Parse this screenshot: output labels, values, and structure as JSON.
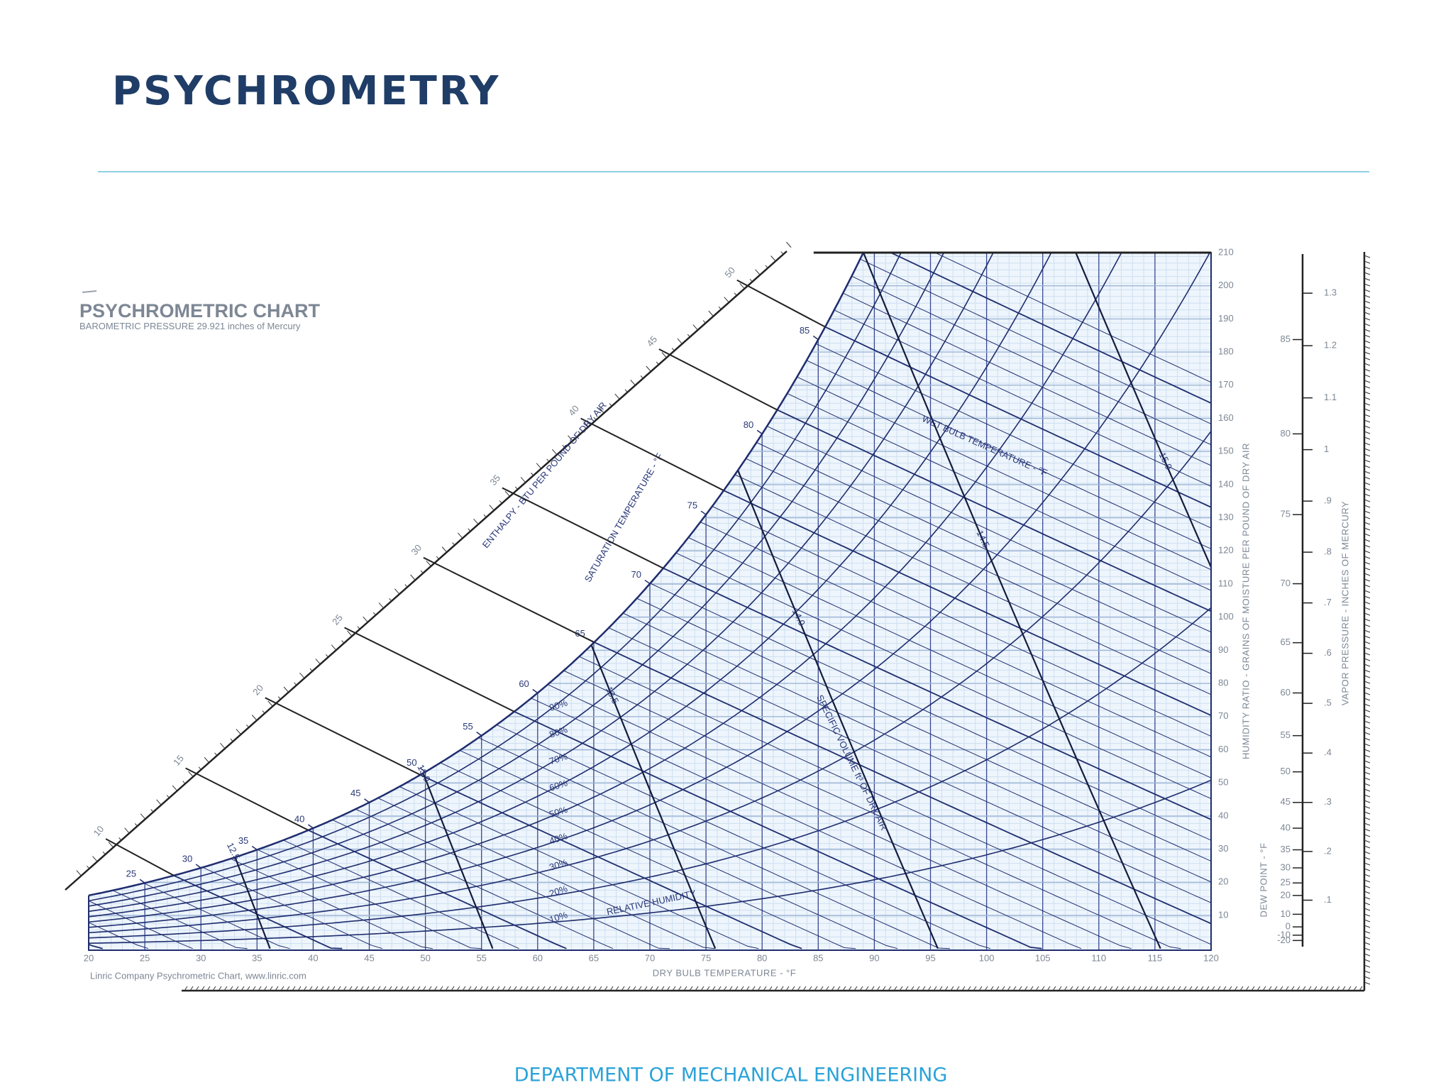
{
  "slide": {
    "title": "PSYCHROMETRY",
    "footer": "DEPARTMENT OF MECHANICAL ENGINEERING"
  },
  "figure": {
    "title": "PSYCHROMETRIC CHART",
    "pressure_label": "BAROMETRIC PRESSURE",
    "pressure": 29.921,
    "pressure_unit": "inches of Mercury",
    "credit": "Linric Company Psychrometric Chart, www.linric.com",
    "x_axis_label": "DRY BULB TEMPERATURE - °F",
    "x_ticks": [
      20,
      25,
      30,
      35,
      40,
      45,
      50,
      55,
      60,
      65,
      70,
      75,
      80,
      85,
      90,
      95,
      100,
      105,
      110,
      115,
      120
    ],
    "y_axis_label": "HUMIDITY RATIO - GRAINS OF MOISTURE PER POUND OF DRY AIR",
    "y_ticks": [
      10,
      20,
      30,
      40,
      50,
      60,
      70,
      80,
      90,
      100,
      110,
      120,
      130,
      140,
      150,
      160,
      170,
      180,
      190,
      200,
      210
    ],
    "saturation_label": "SATURATION TEMPERATURE - °F",
    "saturation_ticks": [
      25,
      30,
      35,
      40,
      45,
      50,
      55,
      60,
      65,
      70,
      75,
      80,
      85
    ],
    "rh_label": "RELATIVE HUMIDITY",
    "rh_ticks": [
      {
        "value": 10,
        "label": "10%"
      },
      {
        "value": 20,
        "label": "20%"
      },
      {
        "value": 30,
        "label": "30%"
      },
      {
        "value": 40,
        "label": "40%"
      },
      {
        "value": 50,
        "label": "50%"
      },
      {
        "value": 60,
        "label": "60%"
      },
      {
        "value": 70,
        "label": "70%"
      },
      {
        "value": 80,
        "label": "80%"
      },
      {
        "value": 90,
        "label": "90%"
      }
    ],
    "wet_bulb_label": "WET BULB TEMPERATURE - °F",
    "volume_label": "SPECIFIC VOLUME ft³ OF DRY AIR",
    "volume_ticks": [
      {
        "value": 12.5,
        "label": "12.5"
      },
      {
        "value": 13,
        "label": "13.0"
      },
      {
        "value": 13.5,
        "label": "13.5"
      },
      {
        "value": 14,
        "label": "14.0"
      },
      {
        "value": 14.5,
        "label": "14.5"
      },
      {
        "value": 15,
        "label": "15.0"
      }
    ],
    "enthalpy_label": "ENTHALPY - BTU PER POUND OF DRY AIR",
    "enthalpy_ticks": [
      10,
      15,
      20,
      25,
      30,
      35,
      40,
      45,
      50
    ],
    "dew_point_label": "DEW POINT - °F",
    "dew_point_ticks": [
      -20,
      -10,
      0,
      10,
      20,
      25,
      30,
      35,
      40,
      45,
      50,
      55,
      60,
      65,
      70,
      75,
      80,
      85
    ],
    "vapor_pressure_label": "VAPOR PRESSURE - INCHES OF MERCURY",
    "vapor_pressure_ticks": [
      {
        "value": 0.1,
        "label": ".1"
      },
      {
        "value": 0.2,
        "label": ".2"
      },
      {
        "value": 0.3,
        "label": ".3"
      },
      {
        "value": 0.4,
        "label": ".4"
      },
      {
        "value": 0.5,
        "label": ".5"
      },
      {
        "value": 0.6,
        "label": ".6"
      },
      {
        "value": 0.7,
        "label": ".7"
      },
      {
        "value": 0.8,
        "label": ".8"
      },
      {
        "value": 0.9,
        "label": ".9"
      },
      1,
      {
        "value": 1.1,
        "label": "1.1"
      },
      {
        "value": 1.2,
        "label": "1.2"
      },
      {
        "value": 1.3,
        "label": "1.3"
      }
    ]
  }
}
